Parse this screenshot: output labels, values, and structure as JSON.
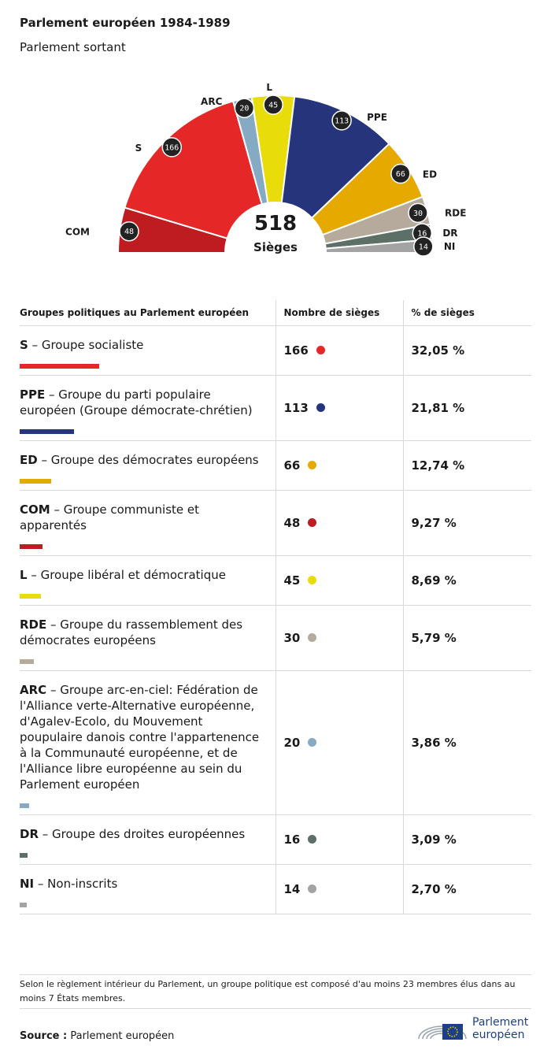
{
  "title": "Parlement européen 1984-1989",
  "subtitle": "Parlement sortant",
  "chart_data": {
    "type": "pie",
    "variant": "hemicycle",
    "total_value": "518",
    "total_label": "Sièges",
    "series": [
      {
        "abbr": "COM",
        "name": "Groupe communiste et apparentés",
        "value": 48,
        "color": "#bf1c22"
      },
      {
        "abbr": "S",
        "name": "Groupe socialiste",
        "value": 166,
        "color": "#e52727"
      },
      {
        "abbr": "ARC",
        "name": "Groupe arc-en-ciel",
        "value": 20,
        "color": "#86aac3"
      },
      {
        "abbr": "L",
        "name": "Groupe libéral et démocratique",
        "value": 45,
        "color": "#e8dc0a"
      },
      {
        "abbr": "PPE",
        "name": "Groupe du parti populaire européen",
        "value": 113,
        "color": "#26357b"
      },
      {
        "abbr": "ED",
        "name": "Groupe des démocrates européens",
        "value": 66,
        "color": "#e5a900"
      },
      {
        "abbr": "RDE",
        "name": "Groupe du rassemblement des démocrates européens",
        "value": 30,
        "color": "#b5aa9c"
      },
      {
        "abbr": "DR",
        "name": "Groupe des droites européennes",
        "value": 16,
        "color": "#5d7067"
      },
      {
        "abbr": "NI",
        "name": "Non-inscrits",
        "value": 14,
        "color": "#a3a3a3"
      }
    ]
  },
  "table": {
    "headers": [
      "Groupes politiques au Parlement européen",
      "Nombre de sièges",
      "% de sièges"
    ],
    "rows": [
      {
        "abbr": "S",
        "name": " – Groupe socialiste",
        "seats": "166",
        "pct": "32,05 %",
        "color": "#e52727",
        "share": 32.05
      },
      {
        "abbr": "PPE",
        "name": " – Groupe du parti populaire européen (Groupe démocrate-chrétien)",
        "seats": "113",
        "pct": "21,81 %",
        "color": "#26357b",
        "share": 21.81
      },
      {
        "abbr": "ED",
        "name": " – Groupe des démocrates européens",
        "seats": "66",
        "pct": "12,74 %",
        "color": "#e5a900",
        "share": 12.74
      },
      {
        "abbr": "COM",
        "name": " – Groupe communiste et apparentés",
        "seats": "48",
        "pct": "9,27 %",
        "color": "#bf1c22",
        "share": 9.27
      },
      {
        "abbr": "L",
        "name": " – Groupe libéral et démocratique",
        "seats": "45",
        "pct": "8,69 %",
        "color": "#e8dc0a",
        "share": 8.69
      },
      {
        "abbr": "RDE",
        "name": " – Groupe du rassemblement des démocrates européens",
        "seats": "30",
        "pct": "5,79 %",
        "color": "#b5aa9c",
        "share": 5.79
      },
      {
        "abbr": "ARC",
        "name": " – Groupe arc-en-ciel: Fédération de l'Alliance verte-Alternative européenne, d'Agalev-Ecolo, du Mouvement poupulaire danois contre l'appartenence à la Communauté européenne, et de l'Alliance libre européenne au sein du Parlement européen",
        "seats": "20",
        "pct": "3,86 %",
        "color": "#86aac3",
        "share": 3.86
      },
      {
        "abbr": "DR",
        "name": " – Groupe des droites européennes",
        "seats": "16",
        "pct": "3,09 %",
        "color": "#5d7067",
        "share": 3.09
      },
      {
        "abbr": "NI",
        "name": " – Non-inscrits",
        "seats": "14",
        "pct": "2,70 %",
        "color": "#a3a3a3",
        "share": 2.7
      }
    ]
  },
  "footnote": "Selon le règlement intérieur du Parlement, un groupe politique est composé d'au moins 23 membres élus dans au moins 7 États membres.",
  "source_label": "Source :",
  "source_value": "Parlement européen",
  "logo_line1": "Parlement",
  "logo_line2": "européen"
}
